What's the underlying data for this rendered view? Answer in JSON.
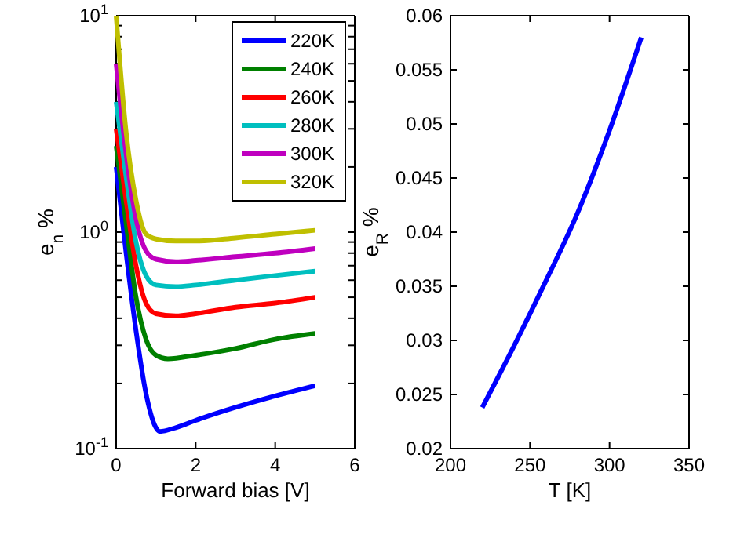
{
  "chart_data": [
    {
      "type": "line",
      "xlabel": "Forward bias [V]",
      "ylabel": "e$_{n}$ %",
      "log": "y",
      "xlim": [
        0,
        6
      ],
      "xticks": [
        0,
        2,
        4,
        6
      ],
      "ylim": [
        0.1,
        10
      ],
      "yticks": [
        {
          "value": 0.1,
          "label": "10$^{-1}$"
        },
        {
          "value": 0.2,
          "label": null
        },
        {
          "value": 0.3,
          "label": null
        },
        {
          "value": 0.4,
          "label": null
        },
        {
          "value": 0.5,
          "label": null
        },
        {
          "value": 0.6,
          "label": null
        },
        {
          "value": 0.7,
          "label": null
        },
        {
          "value": 0.8,
          "label": null
        },
        {
          "value": 0.9,
          "label": null
        },
        {
          "value": 1,
          "label": "10$^{0}$"
        },
        {
          "value": 2,
          "label": null
        },
        {
          "value": 3,
          "label": null
        },
        {
          "value": 4,
          "label": null
        },
        {
          "value": 5,
          "label": null
        },
        {
          "value": 6,
          "label": null
        },
        {
          "value": 7,
          "label": null
        },
        {
          "value": 8,
          "label": null
        },
        {
          "value": 9,
          "label": null
        },
        {
          "value": 10,
          "label": "10$^{1}$"
        }
      ],
      "legend": "top right",
      "grid": false,
      "line_style": "solid",
      "marker": "none",
      "series": [
        {
          "name": "220K",
          "color": "#0000ff",
          "x": [
            0,
            0.25,
            0.5,
            0.75,
            1,
            1.1,
            1.5,
            2,
            3,
            4,
            5
          ],
          "values": [
            2,
            0.8,
            0.35,
            0.18,
            0.125,
            0.12,
            0.125,
            0.135,
            0.155,
            0.175,
            0.195
          ]
        },
        {
          "name": "240K",
          "color": "#008000",
          "x": [
            0,
            0.25,
            0.5,
            0.75,
            1,
            1.3,
            2,
            3,
            4,
            5
          ],
          "values": [
            2.5,
            1.1,
            0.5,
            0.32,
            0.27,
            0.26,
            0.27,
            0.29,
            0.32,
            0.34
          ]
        },
        {
          "name": "260K",
          "color": "#ff0000",
          "x": [
            0,
            0.25,
            0.5,
            0.75,
            1,
            1.5,
            2,
            3,
            4,
            5
          ],
          "values": [
            3,
            1.4,
            0.7,
            0.47,
            0.42,
            0.41,
            0.42,
            0.45,
            0.47,
            0.5
          ]
        },
        {
          "name": "280K",
          "color": "#00bfbf",
          "x": [
            0,
            0.25,
            0.5,
            0.75,
            1,
            1.5,
            2,
            3,
            4,
            5
          ],
          "values": [
            4,
            1.8,
            0.9,
            0.63,
            0.57,
            0.56,
            0.57,
            0.6,
            0.63,
            0.66
          ]
        },
        {
          "name": "300K",
          "color": "#bf00bf",
          "x": [
            0,
            0.25,
            0.5,
            0.75,
            1,
            1.5,
            2,
            3,
            4,
            5
          ],
          "values": [
            6,
            2.3,
            1.15,
            0.82,
            0.75,
            0.73,
            0.74,
            0.77,
            0.8,
            0.84
          ]
        },
        {
          "name": "320K",
          "color": "#bfbf00",
          "x": [
            0,
            0.25,
            0.5,
            0.75,
            1,
            1.5,
            2,
            3,
            4,
            5
          ],
          "values": [
            10,
            2.9,
            1.4,
            0.98,
            0.93,
            0.91,
            0.91,
            0.94,
            0.98,
            1.02
          ]
        }
      ]
    },
    {
      "type": "line",
      "xlabel": "T [K]",
      "ylabel": "e$_{R}$ %",
      "xlim": [
        200,
        350
      ],
      "xticks": [
        200,
        250,
        300,
        350
      ],
      "ylim": [
        0.02,
        0.06
      ],
      "yticks": [
        0.02,
        0.025,
        0.03,
        0.035,
        0.04,
        0.045,
        0.05,
        0.055,
        0.06
      ],
      "grid": false,
      "legend": false,
      "line_style": "solid",
      "marker": "none",
      "series": [
        {
          "color": "#0000ff",
          "x": [
            220,
            240,
            260,
            280,
            300,
            320
          ],
          "values": [
            0.0238,
            0.0295,
            0.0355,
            0.0418,
            0.0494,
            0.058
          ]
        }
      ]
    }
  ]
}
